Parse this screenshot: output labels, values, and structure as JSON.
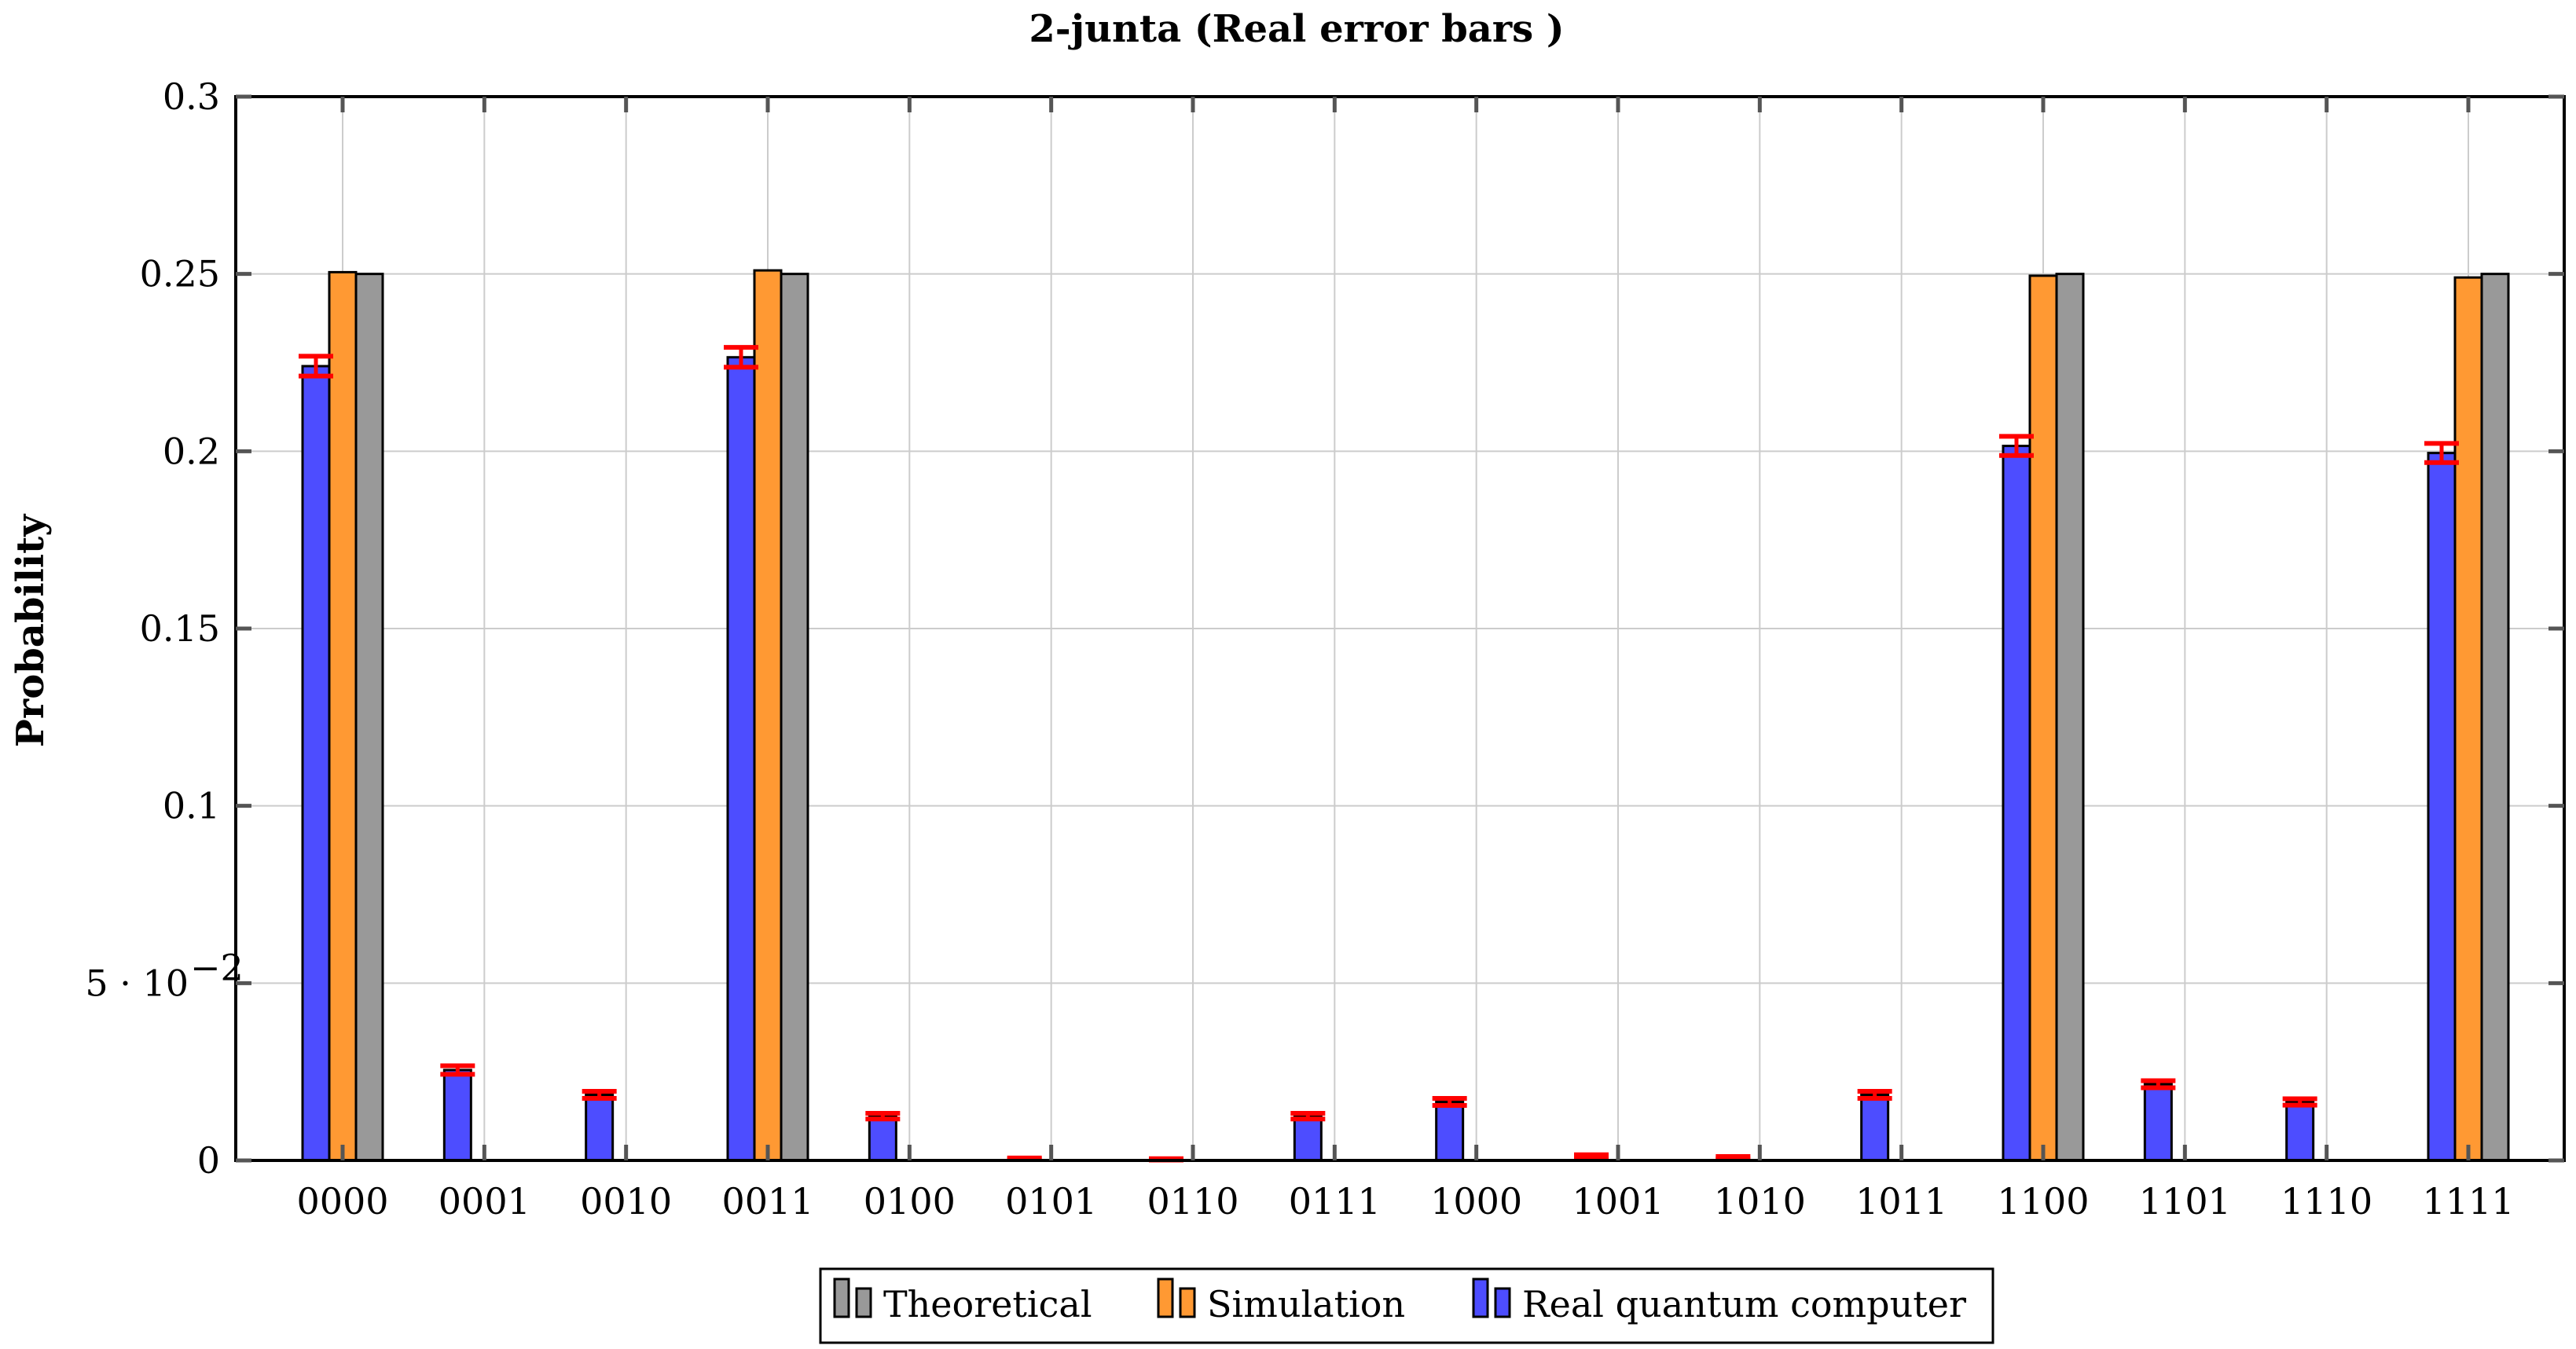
{
  "chart_data": {
    "type": "bar",
    "title": "2-junta (Real error bars )",
    "xlabel": "",
    "ylabel": "Probability",
    "ylim": [
      0,
      0.3
    ],
    "yticks": [
      0,
      0.05,
      0.1,
      0.15,
      0.2,
      0.25,
      0.3
    ],
    "ytick_labels": [
      "0",
      "5 · 10",
      "0.1",
      "0.15",
      "0.2",
      "0.25",
      "0.3"
    ],
    "ytick_exponent": "−2",
    "grid": true,
    "legend_position": "bottom-center",
    "categories": [
      "0000",
      "0001",
      "0010",
      "0011",
      "0100",
      "0101",
      "0110",
      "0111",
      "1000",
      "1001",
      "1010",
      "1011",
      "1100",
      "1101",
      "1110",
      "1111"
    ],
    "series": [
      {
        "name": "Real quantum computer",
        "color": "#4d4dff",
        "values": [
          0.224,
          0.0255,
          0.0185,
          0.2265,
          0.0125,
          0.0005,
          0.0003,
          0.0125,
          0.0165,
          0.0013,
          0.0008,
          0.0185,
          0.2015,
          0.0215,
          0.0165,
          0.1995
        ],
        "errors": [
          0.0028,
          0.0012,
          0.001,
          0.0028,
          0.0008,
          0.0002,
          0.0002,
          0.0008,
          0.001,
          0.0003,
          0.0003,
          0.001,
          0.0027,
          0.001,
          0.0009,
          0.0027
        ],
        "error_color": "#ff0000"
      },
      {
        "name": "Simulation",
        "color": "#ff9933",
        "values": [
          0.2505,
          0,
          0,
          0.251,
          0,
          0,
          0,
          0,
          0,
          0,
          0,
          0,
          0.2495,
          0,
          0,
          0.249
        ]
      },
      {
        "name": "Theoretical",
        "color": "#999999",
        "values": [
          0.25,
          0,
          0,
          0.25,
          0,
          0,
          0,
          0,
          0,
          0,
          0,
          0,
          0.25,
          0,
          0,
          0.25
        ]
      }
    ],
    "legend_order": [
      "Theoretical",
      "Simulation",
      "Real quantum computer"
    ]
  }
}
